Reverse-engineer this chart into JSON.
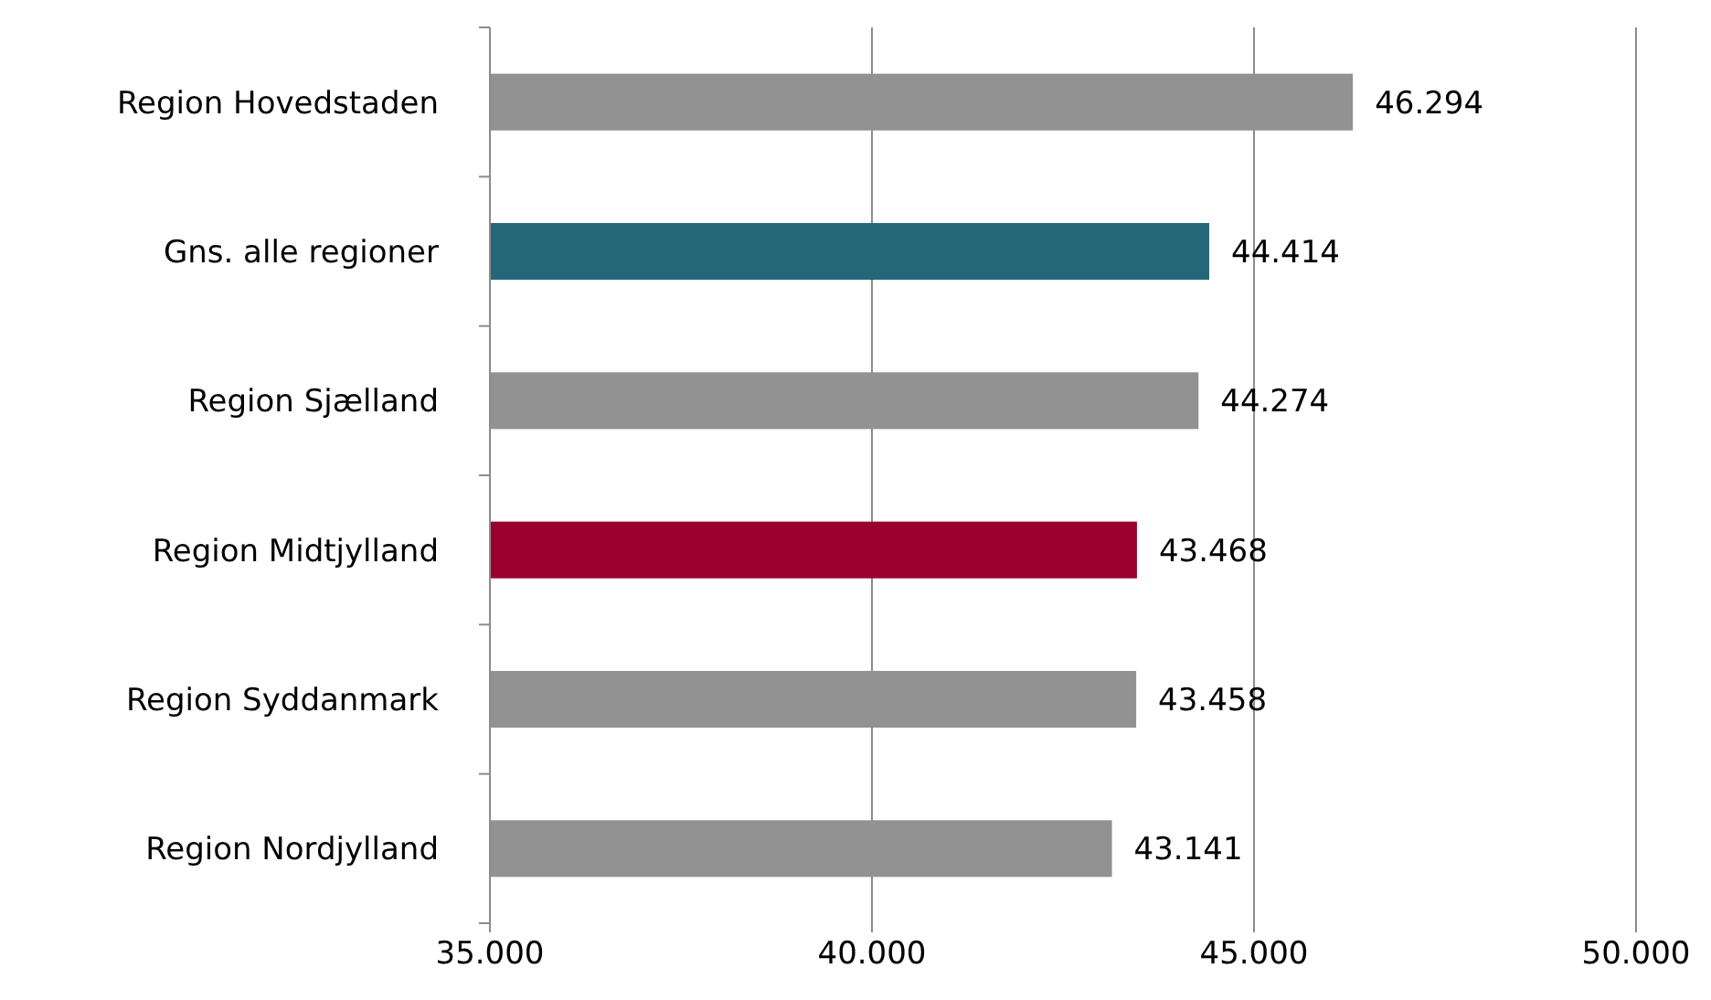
{
  "chart_data": {
    "type": "bar",
    "orientation": "horizontal",
    "categories": [
      "Region Hovedstaden",
      "Gns. alle regioner",
      "Region Sjælland",
      "Region Midtjylland",
      "Region Syddanmark",
      "Region Nordjylland"
    ],
    "values": [
      46294,
      44414,
      44274,
      43468,
      43458,
      43141
    ],
    "colors": [
      "#929292",
      "#236778",
      "#929292",
      "#9a002e",
      "#929292",
      "#929292"
    ],
    "value_labels": [
      "46.294",
      "44.414",
      "44.274",
      "43.468",
      "43.458",
      "43.141"
    ],
    "xlim": [
      35000,
      50000
    ],
    "xticks": [
      {
        "value": 35000,
        "label": "35.000"
      },
      {
        "value": 40000,
        "label": "40.000"
      },
      {
        "value": 45000,
        "label": "45.000"
      },
      {
        "value": 50000,
        "label": "50.000"
      }
    ],
    "grid": "x"
  }
}
